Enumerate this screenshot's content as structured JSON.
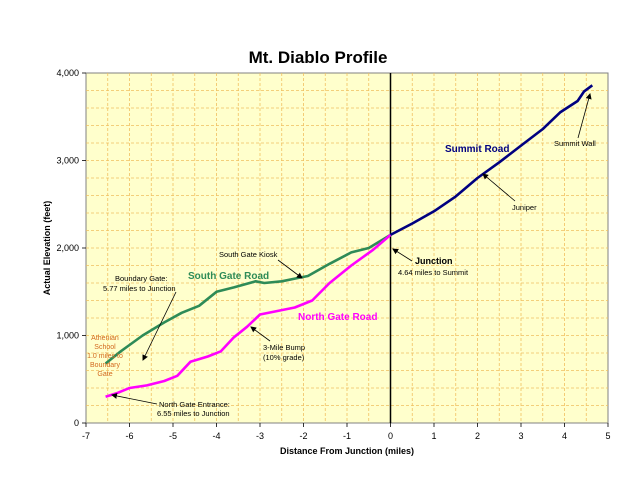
{
  "chart_data": {
    "type": "line",
    "title": "Mt. Diablo Profile",
    "xlabel": "Distance From Junction (miles)",
    "ylabel": "Actual Elevation (feet)",
    "xlim": [
      -7,
      5
    ],
    "ylim": [
      0,
      4000
    ],
    "x_ticks": [
      "-7",
      "-6",
      "-5",
      "-4",
      "-3",
      "-2",
      "-1",
      "0",
      "1",
      "2",
      "3",
      "4",
      "5"
    ],
    "y_ticks": [
      "0",
      "1,000",
      "2,000",
      "3,000",
      "4,000"
    ],
    "grid": true,
    "colors": {
      "plot_bg": "#ffffcc",
      "grid": "#f0c060",
      "south_gate_road": "#2e8b57",
      "north_gate_road": "#ff00ff",
      "summit_road": "#000080"
    },
    "series": [
      {
        "name": "South Gate Road",
        "x": [
          -6.55,
          -6.2,
          -5.7,
          -5.2,
          -4.8,
          -4.4,
          -4.0,
          -3.6,
          -3.1,
          -2.9,
          -2.5,
          -2.2,
          -1.9,
          -1.4,
          -0.9,
          -0.5,
          0
        ],
        "y": [
          680,
          820,
          1000,
          1150,
          1260,
          1340,
          1500,
          1550,
          1620,
          1600,
          1620,
          1650,
          1680,
          1820,
          1950,
          2000,
          2150
        ]
      },
      {
        "name": "North Gate Road",
        "x": [
          -6.55,
          -6.3,
          -6.0,
          -5.6,
          -5.2,
          -4.9,
          -4.6,
          -4.2,
          -3.9,
          -3.6,
          -3.3,
          -3.0,
          -2.6,
          -2.2,
          -1.8,
          -1.4,
          -0.9,
          -0.4,
          0
        ],
        "y": [
          300,
          340,
          400,
          430,
          480,
          540,
          700,
          760,
          820,
          980,
          1100,
          1240,
          1280,
          1320,
          1400,
          1600,
          1800,
          1980,
          2150
        ]
      },
      {
        "name": "Summit Road",
        "x": [
          0,
          0.5,
          1.0,
          1.5,
          2.0,
          2.5,
          3.0,
          3.5,
          3.9,
          4.3,
          4.45,
          4.64
        ],
        "y": [
          2150,
          2280,
          2420,
          2590,
          2800,
          2980,
          3170,
          3360,
          3550,
          3680,
          3790,
          3860
        ]
      }
    ],
    "series_labels": {
      "south": "South Gate Road",
      "north": "North Gate Road",
      "summit": "Summit Road"
    },
    "annotations": {
      "junction_title": "Junction",
      "junction_sub": "4.64 miles to Summit",
      "summit_wall": "Summit Wall",
      "juniper": "Juniper",
      "south_kiosk": "South Gate Kiosk",
      "boundary_1": "Boundary Gate:",
      "boundary_2": "5.77 miles to Junction",
      "athenian_1": "Athenian",
      "athenian_2": "School",
      "athenian_3": "1.0 miles to",
      "athenian_4": "Boundary",
      "athenian_5": "Gate",
      "bump_1": "3-Mile Bump",
      "bump_2": "(10% grade)",
      "north_entrance_1": "North Gate Entrance:",
      "north_entrance_2": "6.55 miles to Junction"
    }
  }
}
